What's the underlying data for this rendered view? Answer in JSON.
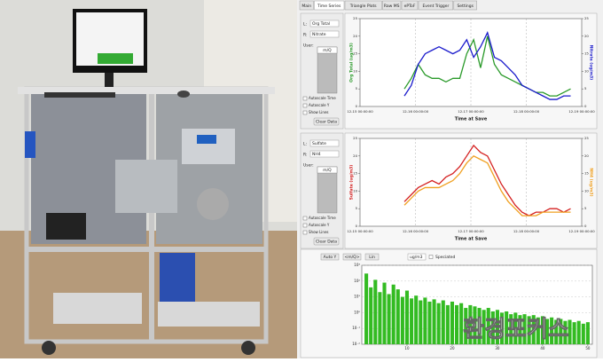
{
  "tabs": [
    "Main",
    "Time Series",
    "Triangle Plots",
    "Raw MS",
    "ePToF",
    "Event Trigger",
    "Settings"
  ],
  "panels": [
    {
      "left_label": "L:",
      "left_select": "Org Total",
      "right_label": "R:",
      "right_select": "Nitrate",
      "user_label": "User:",
      "list_item": "m/Q",
      "checkboxes": [
        "Autoscale Time",
        "Autoscale Y",
        "Show Lines"
      ],
      "button": "Clear Data",
      "chart": {
        "type": "line",
        "xlabel": "Time at Save",
        "ylabel": "Org Total (ug/m3)",
        "y2label": "Nitrate (ug/m3)",
        "grid": true,
        "xlim": [
          15,
          19
        ],
        "xticks": [
          {
            "value": 15,
            "label": "12-15 00:00:00"
          },
          {
            "value": 16,
            "label": "12-16 00:00:00"
          },
          {
            "value": 17,
            "label": "12-17 00:00:00"
          },
          {
            "value": 18,
            "label": "12-18 00:00:00"
          },
          {
            "value": 19,
            "label": "12-19 00:00:00"
          }
        ],
        "ylim": [
          0,
          25
        ],
        "yticks": [
          0,
          5,
          10,
          15,
          20,
          25
        ],
        "y2lim": [
          0,
          25
        ],
        "y2ticks": [
          0,
          5,
          10,
          15,
          20,
          25
        ],
        "x": [
          15.8,
          15.925,
          16.05,
          16.175,
          16.3,
          16.425,
          16.55,
          16.675,
          16.8,
          16.925,
          17.05,
          17.175,
          17.3,
          17.425,
          17.55,
          17.675,
          17.8,
          17.925,
          18.05,
          18.175,
          18.3,
          18.425,
          18.55,
          18.675,
          18.8
        ],
        "series": [
          {
            "color": "#2a9a2a",
            "values": [
              5,
              8,
              12,
              9,
              8,
              8,
              7,
              8,
              8,
              15,
              19,
              11,
              20,
              12,
              9,
              8,
              7,
              6,
              5,
              4,
              4,
              3,
              3,
              4,
              5
            ]
          },
          {
            "color": "#1a1acc",
            "axis": "y2",
            "values": [
              3,
              6,
              12,
              15,
              16,
              17,
              16,
              15,
              16,
              19,
              14,
              17,
              21,
              14,
              13,
              11,
              9,
              6,
              5,
              4,
              3,
              2,
              2,
              3,
              3
            ]
          }
        ]
      }
    },
    {
      "left_label": "L:",
      "left_select": "Sulfate",
      "right_label": "R:",
      "right_select": "NH4",
      "user_label": "User:",
      "list_item": "m/Q",
      "checkboxes": [
        "Autoscale Time",
        "Autoscale Y",
        "Show Lines"
      ],
      "button": "Clear Data",
      "chart": {
        "type": "line",
        "xlabel": "Time at Save",
        "ylabel": "Sulfate (ug/m3)",
        "y2label": "NH4 (ug/m3)",
        "grid": true,
        "xlim": [
          15,
          19
        ],
        "xticks": [
          {
            "value": 15,
            "label": "12-15 00:00:00"
          },
          {
            "value": 16,
            "label": "12-16 00:00:00"
          },
          {
            "value": 17,
            "label": "12-17 00:00:00"
          },
          {
            "value": 18,
            "label": "12-18 00:00:00"
          },
          {
            "value": 19,
            "label": "12-19 00:00:00"
          }
        ],
        "ylim": [
          0,
          25
        ],
        "yticks": [
          0,
          5,
          10,
          15,
          20,
          25
        ],
        "y2lim": [
          0,
          25
        ],
        "y2ticks": [
          0,
          5,
          10,
          15,
          20,
          25
        ],
        "x": [
          15.8,
          15.925,
          16.05,
          16.175,
          16.3,
          16.425,
          16.55,
          16.675,
          16.8,
          16.925,
          17.05,
          17.175,
          17.3,
          17.425,
          17.55,
          17.675,
          17.8,
          17.925,
          18.05,
          18.175,
          18.3,
          18.425,
          18.55,
          18.675,
          18.8
        ],
        "series": [
          {
            "color": "#d42020",
            "values": [
              7,
              9,
              11,
              12,
              13,
              12,
              14,
              15,
              17,
              20,
              23,
              21,
              20,
              16,
              12,
              9,
              6,
              4,
              3,
              4,
              4,
              5,
              5,
              4,
              5
            ]
          },
          {
            "color": "#f0a020",
            "axis": "y2",
            "values": [
              6,
              8,
              10,
              11,
              11,
              11,
              12,
              13,
              15,
              18,
              20,
              19,
              18,
              14,
              10,
              7,
              5,
              3,
              3,
              3,
              4,
              4,
              4,
              4,
              4
            ]
          }
        ]
      }
    }
  ],
  "mass_spectrum": {
    "buttons": [
      "Auto Y",
      "<m/Q>",
      "Lin"
    ],
    "unit_select": "ug/m3",
    "checkbox": "Speciated",
    "chart": {
      "type": "bar",
      "log_y": true,
      "color": "#33bb22",
      "xlim": [
        0,
        51
      ],
      "xticks": [
        10,
        20,
        30,
        40,
        50
      ],
      "ylim": [
        0.01,
        1000
      ],
      "yticks": [
        {
          "value": 0.01,
          "label": "10⁻²"
        },
        {
          "value": 0.1,
          "label": "10⁻¹"
        },
        {
          "value": 1,
          "label": "10⁰"
        },
        {
          "value": 10,
          "label": "10¹"
        },
        {
          "value": 100,
          "label": "10²"
        },
        {
          "value": 1000,
          "label": "10³"
        }
      ],
      "x": [
        1,
        2,
        3,
        4,
        5,
        6,
        7,
        8,
        9,
        10,
        11,
        12,
        13,
        14,
        15,
        16,
        17,
        18,
        19,
        20,
        21,
        22,
        23,
        24,
        25,
        26,
        27,
        28,
        29,
        30,
        31,
        32,
        33,
        34,
        35,
        36,
        37,
        38,
        39,
        40,
        41,
        42,
        43,
        44,
        45,
        46,
        47,
        48,
        49,
        50
      ],
      "values": [
        300,
        40,
        120,
        20,
        80,
        15,
        60,
        30,
        10,
        25,
        8,
        12,
        6,
        9,
        5,
        7,
        4,
        6,
        3,
        5,
        3,
        4,
        2,
        3,
        2.5,
        2,
        1.5,
        2,
        1.2,
        1.5,
        1,
        1.2,
        0.8,
        1,
        0.7,
        0.8,
        0.6,
        0.7,
        0.5,
        0.6,
        0.4,
        0.5,
        0.35,
        0.4,
        0.3,
        0.35,
        0.25,
        0.3,
        0.2,
        0.25
      ]
    }
  },
  "watermark": "환경포커스"
}
